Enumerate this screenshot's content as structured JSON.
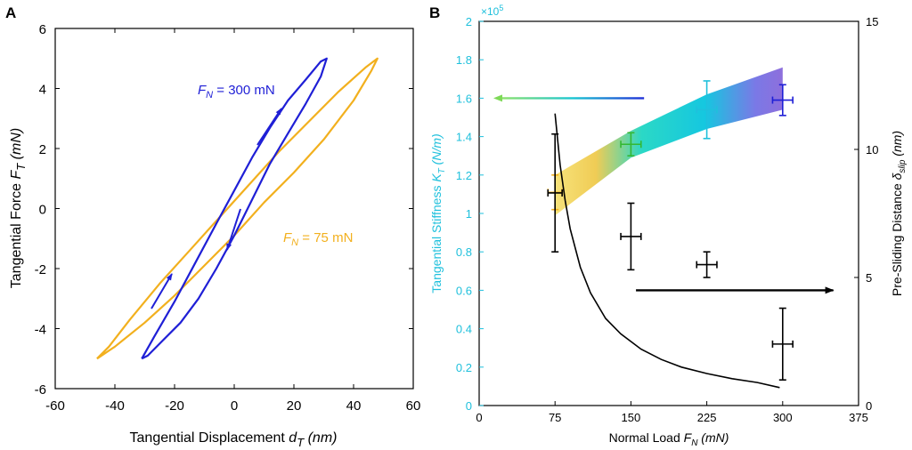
{
  "panels": {
    "a": "A",
    "b": "B"
  },
  "colors": {
    "blue": "#1f1fd6",
    "orange": "#f2b01e",
    "cyan": "#1fc0dc",
    "black": "#000000",
    "gradient": [
      "#f6e27a",
      "#f0cc55",
      "#2bd8c6",
      "#15c7e0",
      "#7a79e6",
      "#8e6fdc"
    ]
  },
  "chart_data": [
    {
      "type": "line",
      "panel": "A",
      "xlabel": "Tangential Displacement d_T (nm)",
      "ylabel": "Tangential Force F_T (mN)",
      "xlim": [
        -60,
        60
      ],
      "ylim": [
        -6,
        6
      ],
      "xticks": [
        "-60",
        "-40",
        "-20",
        "0",
        "20",
        "40",
        "60"
      ],
      "yticks": [
        "6",
        "4",
        "2",
        "0",
        "-2",
        "-4",
        "-6"
      ],
      "series": [
        {
          "name": "F_N = 75 mN",
          "color": "#f2b01e",
          "x": [
            -46,
            -40,
            -30,
            -20,
            -10,
            0,
            10,
            20,
            30,
            40,
            46,
            48,
            44,
            35,
            25,
            15,
            5,
            -5,
            -15,
            -25,
            -35,
            -42,
            -46
          ],
          "y": [
            -5.0,
            -4.6,
            -3.8,
            -2.9,
            -1.9,
            -0.9,
            0.2,
            1.2,
            2.3,
            3.6,
            4.6,
            5.0,
            4.7,
            3.9,
            2.9,
            1.9,
            0.8,
            -0.3,
            -1.4,
            -2.5,
            -3.7,
            -4.6,
            -5.0
          ]
        },
        {
          "name": "F_N = 300 mN",
          "color": "#1f1fd6",
          "x": [
            -31,
            -27,
            -20,
            -13,
            -6,
            0,
            6,
            12,
            18,
            24,
            29,
            31,
            29,
            24,
            18,
            12,
            6,
            0,
            -6,
            -12,
            -18,
            -24,
            -29,
            -31
          ],
          "y": [
            -5.0,
            -4.3,
            -3.1,
            -1.8,
            -0.5,
            0.6,
            1.7,
            2.7,
            3.6,
            4.3,
            4.9,
            5.0,
            4.4,
            3.5,
            2.5,
            1.5,
            0.3,
            -0.9,
            -2.0,
            -3.0,
            -3.8,
            -4.4,
            -4.9,
            -5.0
          ]
        }
      ],
      "annotations": [
        {
          "text": "F",
          "sub": "N",
          "rest": " = 300 mN",
          "color": "#1f1fd6",
          "at": [
            -12,
            4.6
          ]
        },
        {
          "text": "F",
          "sub": "N",
          "rest": " = 75 mN",
          "color": "#f2b01e",
          "at": [
            16,
            -0.8
          ]
        }
      ]
    },
    {
      "type": "scatter",
      "panel": "B",
      "xlabel": "Normal Load F_N (mN)",
      "ylabel_left": "Tangential Stiffness K_T (N/m)",
      "ylabel_right": "Pre-Sliding Distance δ_slip (nm)",
      "multiplier": "×10^5",
      "xlim": [
        0,
        375
      ],
      "ylim_left": [
        0,
        2
      ],
      "ylim_right": [
        0,
        15
      ],
      "xticks": [
        "0",
        "75",
        "150",
        "225",
        "300",
        "375"
      ],
      "yticks_left": [
        "0",
        "0.2",
        "0.4",
        "0.6",
        "0.8",
        "1",
        "1.2",
        "1.4",
        "1.6",
        "1.8",
        "2"
      ],
      "yticks_right": [
        "0",
        "5",
        "10",
        "15"
      ],
      "stiffness": {
        "x": [
          75,
          150,
          225,
          300
        ],
        "y": [
          1.11,
          1.36,
          1.54,
          1.59
        ],
        "yerr": [
          0.09,
          0.06,
          0.15,
          0.08
        ],
        "xerr": [
          7,
          10,
          10,
          10
        ],
        "colors": [
          "#f2b01e",
          "#33b833",
          "#1fc0dc",
          "#1f1fd6"
        ],
        "band_upper": [
          1.2,
          1.43,
          1.62,
          1.76
        ],
        "band_lower": [
          0.99,
          1.29,
          1.44,
          1.54
        ]
      },
      "slip": {
        "x": [
          75,
          150,
          225,
          300
        ],
        "y": [
          8.3,
          6.6,
          5.5,
          2.4
        ],
        "yerr": [
          2.3,
          1.3,
          0.5,
          1.4
        ],
        "xerr": [
          7,
          10,
          10,
          10
        ],
        "fit_x": [
          75,
          80,
          85,
          90,
          100,
          110,
          125,
          140,
          160,
          180,
          200,
          225,
          250,
          275,
          297
        ],
        "fit_y": [
          11.4,
          9.4,
          8.0,
          6.9,
          5.4,
          4.4,
          3.4,
          2.8,
          2.2,
          1.8,
          1.5,
          1.25,
          1.05,
          0.9,
          0.7
        ]
      },
      "arrows": [
        {
          "from": [
            163,
            1.6
          ],
          "to": [
            22,
            1.6
          ],
          "axis": "left",
          "style": "gradient"
        },
        {
          "from": [
            155,
            4.5
          ],
          "to": [
            350,
            4.5
          ],
          "axis": "right",
          "style": "black"
        }
      ]
    }
  ]
}
